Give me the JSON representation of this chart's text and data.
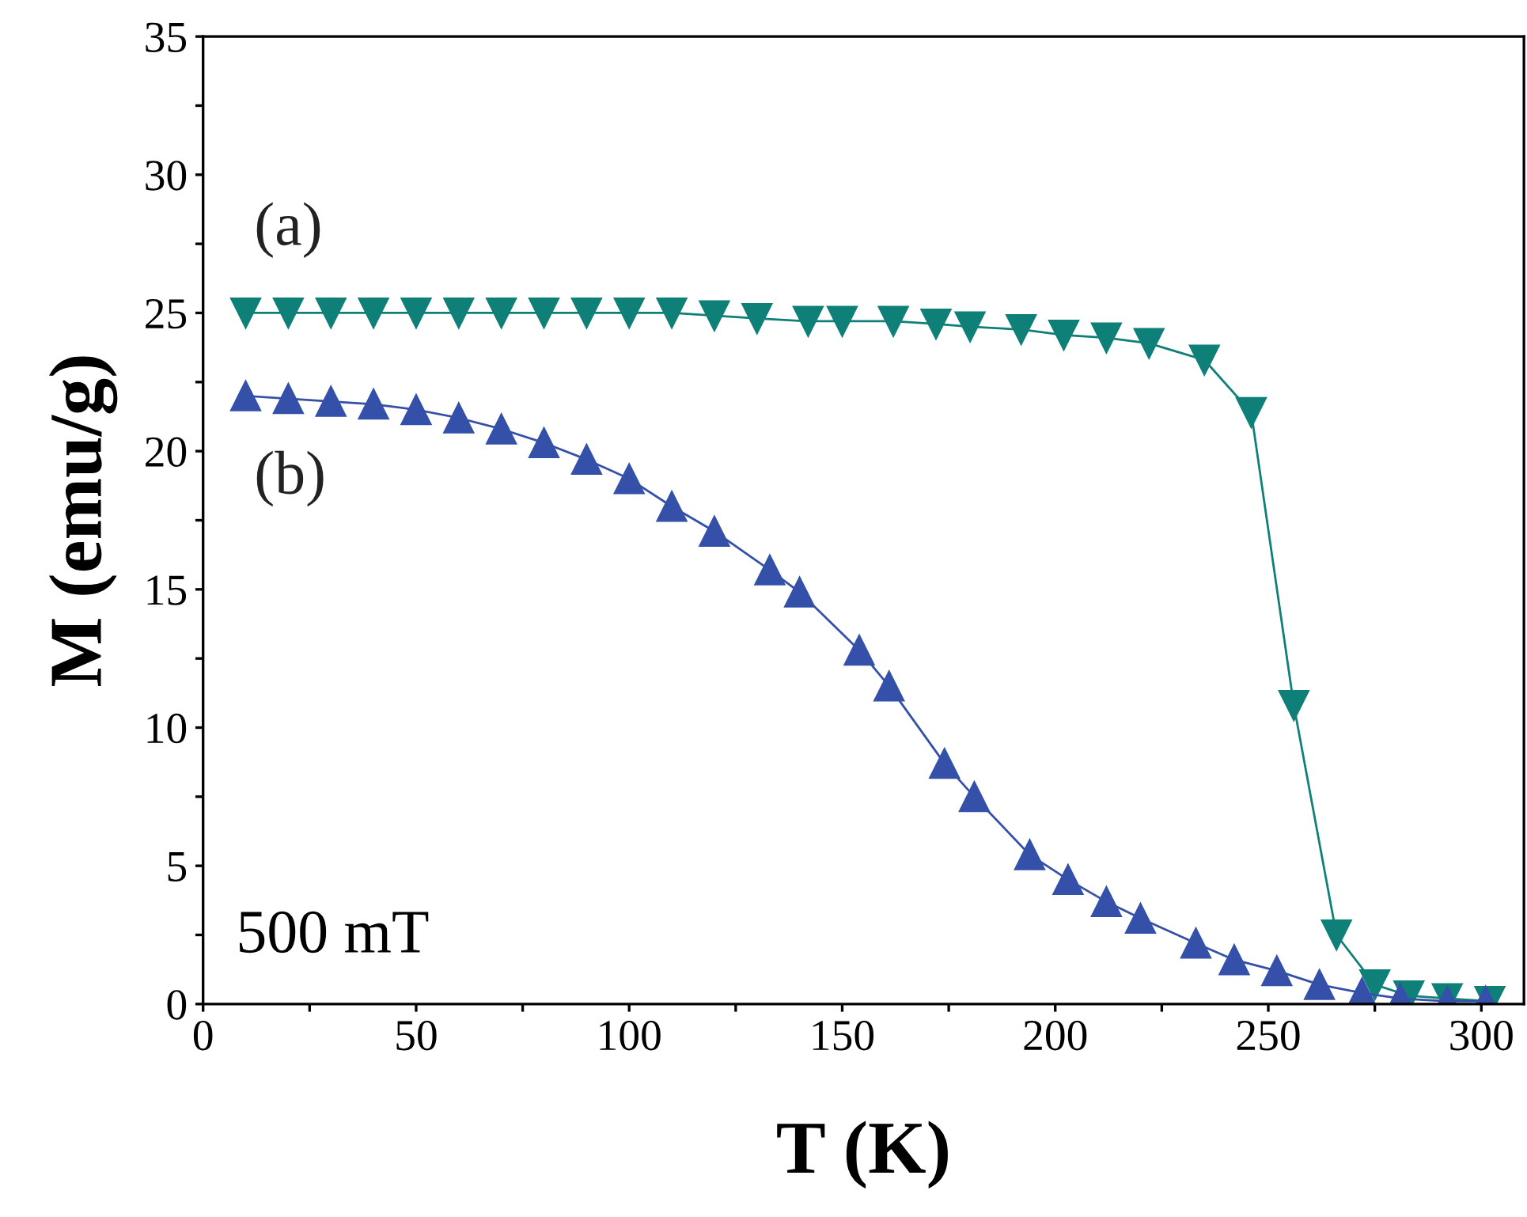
{
  "chart_data": {
    "type": "line",
    "xlabel": "T (K)",
    "ylabel": "M (emu/g)",
    "line_style": "solid",
    "grid": false,
    "legend": false,
    "xlim": [
      0,
      310
    ],
    "ylim": [
      0,
      35
    ],
    "xticks": [
      0,
      {
        "value": 25,
        "label": null
      },
      50,
      {
        "value": 75,
        "label": null
      },
      100,
      {
        "value": 125,
        "label": null
      },
      150,
      {
        "value": 175,
        "label": null
      },
      200,
      {
        "value": 225,
        "label": null
      },
      250,
      {
        "value": 275,
        "label": null
      },
      300
    ],
    "yticks": [
      0,
      {
        "value": 2.5,
        "label": null
      },
      5,
      {
        "value": 7.5,
        "label": null
      },
      10,
      {
        "value": 12.5,
        "label": null
      },
      15,
      {
        "value": 17.5,
        "label": null
      },
      20,
      {
        "value": 22.5,
        "label": null
      },
      25,
      {
        "value": 27.5,
        "label": null
      },
      30,
      {
        "value": 32.5,
        "label": null
      },
      35
    ],
    "annotations": [
      "500 mT"
    ],
    "series": [
      {
        "name": "(a)",
        "color": "#0e8078",
        "marker": "triangle_down",
        "x": [
          10,
          20,
          30,
          40,
          50,
          60,
          70,
          80,
          90,
          100,
          110,
          120,
          130,
          142,
          150,
          162,
          172,
          180,
          192,
          202,
          212,
          222,
          235,
          246,
          256,
          266,
          275,
          283,
          292,
          302
        ],
        "values": [
          25.0,
          25.0,
          25.0,
          25.0,
          25.0,
          25.0,
          25.0,
          25.0,
          25.0,
          25.0,
          25.0,
          24.9,
          24.8,
          24.7,
          24.7,
          24.7,
          24.6,
          24.5,
          24.4,
          24.2,
          24.1,
          23.9,
          23.3,
          21.4,
          10.8,
          2.5,
          0.7,
          0.3,
          0.2,
          0.1
        ]
      },
      {
        "name": "(b)",
        "color": "#3450a8",
        "marker": "triangle",
        "x": [
          10,
          20,
          30,
          40,
          50,
          60,
          70,
          80,
          90,
          100,
          110,
          120,
          133,
          140,
          154,
          161,
          174,
          181,
          194,
          203,
          212,
          220,
          233,
          242,
          252,
          262,
          272,
          281,
          292,
          301
        ],
        "values": [
          22.0,
          21.9,
          21.8,
          21.7,
          21.5,
          21.2,
          20.8,
          20.3,
          19.7,
          19.0,
          18.0,
          17.1,
          15.7,
          14.9,
          12.8,
          11.5,
          8.7,
          7.5,
          5.4,
          4.5,
          3.7,
          3.1,
          2.2,
          1.6,
          1.2,
          0.7,
          0.4,
          0.2,
          0.1,
          0.1
        ]
      }
    ]
  }
}
